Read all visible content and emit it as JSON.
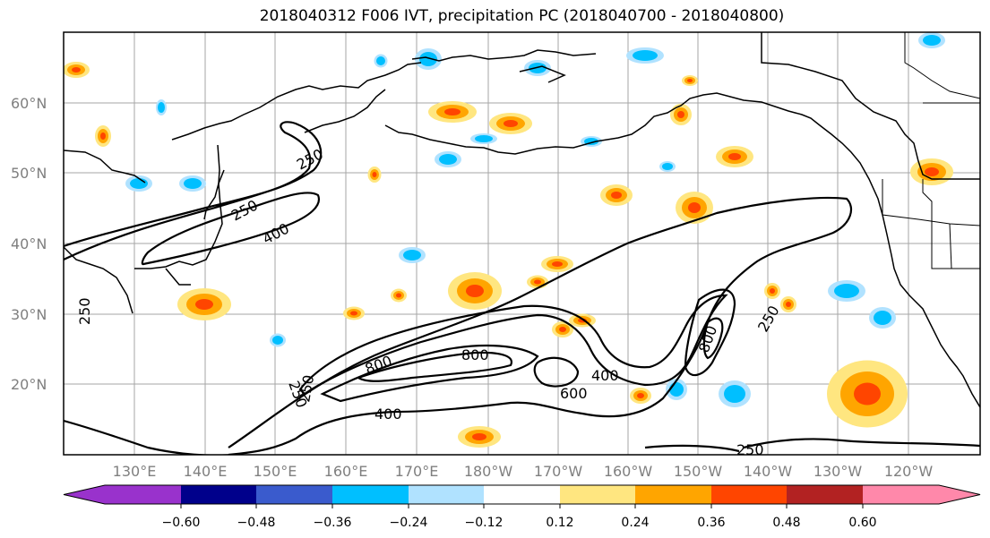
{
  "title": "2018040312 F006 IVT, precipitation PC (2018040700 - 2018040800)",
  "map": {
    "lon_labels": [
      "130°E",
      "140°E",
      "150°E",
      "160°E",
      "170°E",
      "180°W",
      "170°W",
      "160°W",
      "150°W",
      "140°W",
      "130°W",
      "120°W"
    ],
    "lat_labels": [
      "60°N",
      "50°N",
      "40°N",
      "30°N",
      "20°N"
    ],
    "grid": true,
    "ivt_contour_levels": [
      "250",
      "400",
      "600",
      "800"
    ],
    "contour_labels": [
      "250",
      "400",
      "250",
      "250",
      "800",
      "400",
      "600",
      "800",
      "250",
      "250",
      "250",
      "800",
      "250",
      "400"
    ]
  },
  "colorbar": {
    "tick_labels": [
      "−0.60",
      "−0.48",
      "−0.36",
      "−0.24",
      "−0.12",
      "0.12",
      "0.24",
      "0.36",
      "0.48",
      "0.60"
    ],
    "colors": [
      "#9932cc",
      "#00008b",
      "#3a5bcd",
      "#00bfff",
      "#b0e2ff",
      "#ffffff",
      "#ffe680",
      "#ffa500",
      "#ff4500",
      "#b22222",
      "#ff88aa"
    ]
  }
}
